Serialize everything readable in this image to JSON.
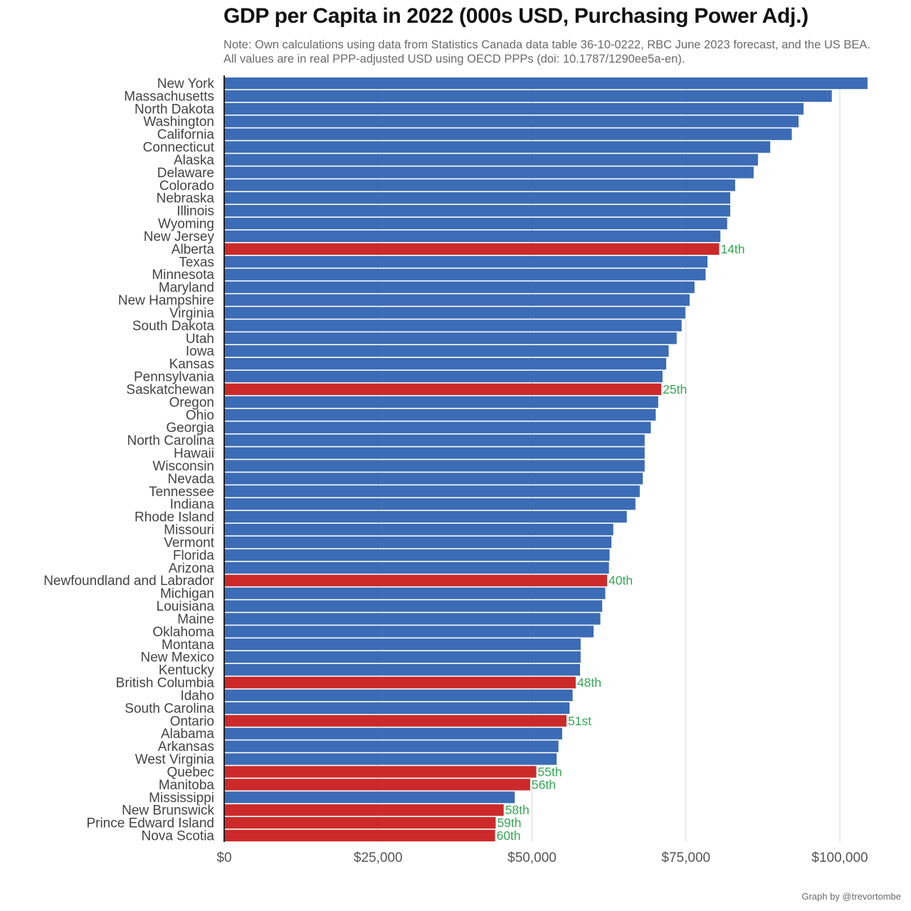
{
  "chart_data": {
    "type": "bar",
    "orientation": "horizontal",
    "title": "GDP per Capita in 2022 (000s USD, Purchasing Power Adj.)",
    "subtitle": "Note: Own calculations using data from Statistics Canada data table 36-10-0222, RBC June 2023 forecast, and the US BEA. All values are in real PPP-adjusted USD using OECD PPPs (doi: 10.1787/1290ee5a-en).",
    "credit": "Graph by @trevortombe",
    "xlim": [
      0,
      105000
    ],
    "xticks": [
      {
        "value": 0,
        "label": "$0"
      },
      {
        "value": 25000,
        "label": "$25,000"
      },
      {
        "value": 50000,
        "label": "$50,000"
      },
      {
        "value": 75000,
        "label": "$75,000"
      },
      {
        "value": 100000,
        "label": "$100,000"
      }
    ],
    "colors": {
      "us": "#3b6cb5",
      "canada": "#cc2a2a",
      "rank": "#34a853",
      "grid": "#dddddd"
    },
    "series": [
      {
        "name": "New York",
        "value": 104500,
        "canada": false
      },
      {
        "name": "Massachusetts",
        "value": 98700,
        "canada": false
      },
      {
        "name": "North Dakota",
        "value": 94100,
        "canada": false
      },
      {
        "name": "Washington",
        "value": 93300,
        "canada": false
      },
      {
        "name": "California",
        "value": 92200,
        "canada": false
      },
      {
        "name": "Connecticut",
        "value": 88700,
        "canada": false
      },
      {
        "name": "Alaska",
        "value": 86700,
        "canada": false
      },
      {
        "name": "Delaware",
        "value": 86000,
        "canada": false
      },
      {
        "name": "Colorado",
        "value": 83000,
        "canada": false
      },
      {
        "name": "Nebraska",
        "value": 82200,
        "canada": false
      },
      {
        "name": "Illinois",
        "value": 82200,
        "canada": false
      },
      {
        "name": "Wyoming",
        "value": 81700,
        "canada": false
      },
      {
        "name": "New Jersey",
        "value": 80600,
        "canada": false
      },
      {
        "name": "Alberta",
        "value": 80400,
        "canada": true,
        "rank": "14th"
      },
      {
        "name": "Texas",
        "value": 78500,
        "canada": false
      },
      {
        "name": "Minnesota",
        "value": 78200,
        "canada": false
      },
      {
        "name": "Maryland",
        "value": 76400,
        "canada": false
      },
      {
        "name": "New Hampshire",
        "value": 75600,
        "canada": false
      },
      {
        "name": "Virginia",
        "value": 74900,
        "canada": false
      },
      {
        "name": "South Dakota",
        "value": 74300,
        "canada": false
      },
      {
        "name": "Utah",
        "value": 73500,
        "canada": false
      },
      {
        "name": "Iowa",
        "value": 72200,
        "canada": false
      },
      {
        "name": "Kansas",
        "value": 71800,
        "canada": false
      },
      {
        "name": "Pennsylvania",
        "value": 71200,
        "canada": false
      },
      {
        "name": "Saskatchewan",
        "value": 71000,
        "canada": true,
        "rank": "25th"
      },
      {
        "name": "Oregon",
        "value": 70500,
        "canada": false
      },
      {
        "name": "Ohio",
        "value": 70100,
        "canada": false
      },
      {
        "name": "Georgia",
        "value": 69300,
        "canada": false
      },
      {
        "name": "North Carolina",
        "value": 68300,
        "canada": false
      },
      {
        "name": "Hawaii",
        "value": 68300,
        "canada": false
      },
      {
        "name": "Wisconsin",
        "value": 68300,
        "canada": false
      },
      {
        "name": "Nevada",
        "value": 68000,
        "canada": false
      },
      {
        "name": "Tennessee",
        "value": 67500,
        "canada": false
      },
      {
        "name": "Indiana",
        "value": 66800,
        "canada": false
      },
      {
        "name": "Rhode Island",
        "value": 65400,
        "canada": false
      },
      {
        "name": "Missouri",
        "value": 63200,
        "canada": false
      },
      {
        "name": "Vermont",
        "value": 62900,
        "canada": false
      },
      {
        "name": "Florida",
        "value": 62600,
        "canada": false
      },
      {
        "name": "Arizona",
        "value": 62500,
        "canada": false
      },
      {
        "name": "Newfoundland and Labrador",
        "value": 62200,
        "canada": true,
        "rank": "40th"
      },
      {
        "name": "Michigan",
        "value": 61900,
        "canada": false
      },
      {
        "name": "Louisiana",
        "value": 61400,
        "canada": false
      },
      {
        "name": "Maine",
        "value": 61100,
        "canada": false
      },
      {
        "name": "Oklahoma",
        "value": 60000,
        "canada": false
      },
      {
        "name": "Montana",
        "value": 57900,
        "canada": false
      },
      {
        "name": "New Mexico",
        "value": 57900,
        "canada": false
      },
      {
        "name": "Kentucky",
        "value": 57800,
        "canada": false
      },
      {
        "name": "British Columbia",
        "value": 57100,
        "canada": true,
        "rank": "48th"
      },
      {
        "name": "Idaho",
        "value": 56600,
        "canada": false
      },
      {
        "name": "South Carolina",
        "value": 56100,
        "canada": false
      },
      {
        "name": "Ontario",
        "value": 55600,
        "canada": true,
        "rank": "51st"
      },
      {
        "name": "Alabama",
        "value": 54900,
        "canada": false
      },
      {
        "name": "Arkansas",
        "value": 54300,
        "canada": false
      },
      {
        "name": "West Virginia",
        "value": 54000,
        "canada": false
      },
      {
        "name": "Quebec",
        "value": 50700,
        "canada": true,
        "rank": "55th"
      },
      {
        "name": "Manitoba",
        "value": 49700,
        "canada": true,
        "rank": "56th"
      },
      {
        "name": "Mississippi",
        "value": 47200,
        "canada": false
      },
      {
        "name": "New Brunswick",
        "value": 45400,
        "canada": true,
        "rank": "58th"
      },
      {
        "name": "Prince Edward Island",
        "value": 44100,
        "canada": true,
        "rank": "59th"
      },
      {
        "name": "Nova Scotia",
        "value": 44000,
        "canada": true,
        "rank": "60th"
      }
    ]
  }
}
